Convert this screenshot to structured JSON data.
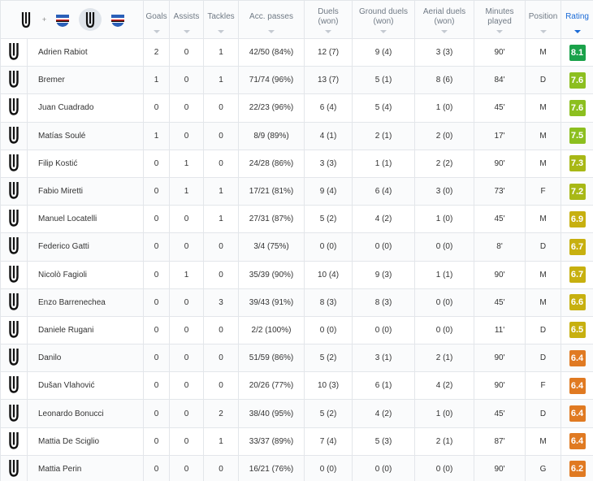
{
  "headers": {
    "goals": "Goals",
    "assists": "Assists",
    "tackles": "Tackles",
    "acc_passes": "Acc. passes",
    "duels": "Duels\n(won)",
    "ground_duels": "Ground duels\n(won)",
    "aerial_duels": "Aerial duels\n(won)",
    "minutes": "Minutes\nplayed",
    "position": "Position",
    "rating": "Rating"
  },
  "header_icons": [
    "juventus-logo-icon",
    "plus-icon",
    "sampdoria-logo-icon",
    "juventus-logo-icon",
    "sampdoria-logo-icon"
  ],
  "plus_text": "+",
  "colors": {
    "rating_dark_green": "#1aa24a",
    "rating_green": "#8cbf1f",
    "rating_lime": "#a8b816",
    "rating_yellow": "#c7b00f",
    "rating_orange": "#e07a22",
    "sort_active": "#1a6ad6"
  },
  "players": [
    {
      "name": "Adrien Rabiot",
      "goals": "2",
      "assists": "0",
      "tackles": "1",
      "acc_passes": "42/50 (84%)",
      "duels": "12 (7)",
      "ground_duels": "9 (4)",
      "aerial_duels": "3 (3)",
      "minutes": "90'",
      "position": "M",
      "rating": "8.1",
      "rating_color": "#1aa24a"
    },
    {
      "name": "Bremer",
      "goals": "1",
      "assists": "0",
      "tackles": "1",
      "acc_passes": "71/74 (96%)",
      "duels": "13 (7)",
      "ground_duels": "5 (1)",
      "aerial_duels": "8 (6)",
      "minutes": "84'",
      "position": "D",
      "rating": "7.6",
      "rating_color": "#8cbf1f"
    },
    {
      "name": "Juan Cuadrado",
      "goals": "0",
      "assists": "0",
      "tackles": "0",
      "acc_passes": "22/23 (96%)",
      "duels": "6 (4)",
      "ground_duels": "5 (4)",
      "aerial_duels": "1 (0)",
      "minutes": "45'",
      "position": "M",
      "rating": "7.6",
      "rating_color": "#8cbf1f"
    },
    {
      "name": "Matías Soulé",
      "goals": "1",
      "assists": "0",
      "tackles": "0",
      "acc_passes": "8/9 (89%)",
      "duels": "4 (1)",
      "ground_duels": "2 (1)",
      "aerial_duels": "2 (0)",
      "minutes": "17'",
      "position": "M",
      "rating": "7.5",
      "rating_color": "#8cbf1f"
    },
    {
      "name": "Filip Kostić",
      "goals": "0",
      "assists": "1",
      "tackles": "0",
      "acc_passes": "24/28 (86%)",
      "duels": "3 (3)",
      "ground_duels": "1 (1)",
      "aerial_duels": "2 (2)",
      "minutes": "90'",
      "position": "M",
      "rating": "7.3",
      "rating_color": "#a8b816"
    },
    {
      "name": "Fabio Miretti",
      "goals": "0",
      "assists": "1",
      "tackles": "1",
      "acc_passes": "17/21 (81%)",
      "duels": "9 (4)",
      "ground_duels": "6 (4)",
      "aerial_duels": "3 (0)",
      "minutes": "73'",
      "position": "F",
      "rating": "7.2",
      "rating_color": "#a8b816"
    },
    {
      "name": "Manuel Locatelli",
      "goals": "0",
      "assists": "0",
      "tackles": "1",
      "acc_passes": "27/31 (87%)",
      "duels": "5 (2)",
      "ground_duels": "4 (2)",
      "aerial_duels": "1 (0)",
      "minutes": "45'",
      "position": "M",
      "rating": "6.9",
      "rating_color": "#c7b00f"
    },
    {
      "name": "Federico Gatti",
      "goals": "0",
      "assists": "0",
      "tackles": "0",
      "acc_passes": "3/4 (75%)",
      "duels": "0 (0)",
      "ground_duels": "0 (0)",
      "aerial_duels": "0 (0)",
      "minutes": "8'",
      "position": "D",
      "rating": "6.7",
      "rating_color": "#c7b00f"
    },
    {
      "name": "Nicolò Fagioli",
      "goals": "0",
      "assists": "1",
      "tackles": "0",
      "acc_passes": "35/39 (90%)",
      "duels": "10 (4)",
      "ground_duels": "9 (3)",
      "aerial_duels": "1 (1)",
      "minutes": "90'",
      "position": "M",
      "rating": "6.7",
      "rating_color": "#c7b00f"
    },
    {
      "name": "Enzo Barrenechea",
      "goals": "0",
      "assists": "0",
      "tackles": "3",
      "acc_passes": "39/43 (91%)",
      "duels": "8 (3)",
      "ground_duels": "8 (3)",
      "aerial_duels": "0 (0)",
      "minutes": "45'",
      "position": "M",
      "rating": "6.6",
      "rating_color": "#c7b00f"
    },
    {
      "name": "Daniele Rugani",
      "goals": "0",
      "assists": "0",
      "tackles": "0",
      "acc_passes": "2/2 (100%)",
      "duels": "0 (0)",
      "ground_duels": "0 (0)",
      "aerial_duels": "0 (0)",
      "minutes": "11'",
      "position": "D",
      "rating": "6.5",
      "rating_color": "#c7b00f"
    },
    {
      "name": "Danilo",
      "goals": "0",
      "assists": "0",
      "tackles": "0",
      "acc_passes": "51/59 (86%)",
      "duels": "5 (2)",
      "ground_duels": "3 (1)",
      "aerial_duels": "2 (1)",
      "minutes": "90'",
      "position": "D",
      "rating": "6.4",
      "rating_color": "#e07a22"
    },
    {
      "name": "Dušan Vlahović",
      "goals": "0",
      "assists": "0",
      "tackles": "0",
      "acc_passes": "20/26 (77%)",
      "duels": "10 (3)",
      "ground_duels": "6 (1)",
      "aerial_duels": "4 (2)",
      "minutes": "90'",
      "position": "F",
      "rating": "6.4",
      "rating_color": "#e07a22"
    },
    {
      "name": "Leonardo Bonucci",
      "goals": "0",
      "assists": "0",
      "tackles": "2",
      "acc_passes": "38/40 (95%)",
      "duels": "5 (2)",
      "ground_duels": "4 (2)",
      "aerial_duels": "1 (0)",
      "minutes": "45'",
      "position": "D",
      "rating": "6.4",
      "rating_color": "#e07a22"
    },
    {
      "name": "Mattia De Sciglio",
      "goals": "0",
      "assists": "0",
      "tackles": "1",
      "acc_passes": "33/37 (89%)",
      "duels": "7 (4)",
      "ground_duels": "5 (3)",
      "aerial_duels": "2 (1)",
      "minutes": "87'",
      "position": "M",
      "rating": "6.4",
      "rating_color": "#e07a22"
    },
    {
      "name": "Mattia Perin",
      "goals": "0",
      "assists": "0",
      "tackles": "0",
      "acc_passes": "16/21 (76%)",
      "duels": "0 (0)",
      "ground_duels": "0 (0)",
      "aerial_duels": "0 (0)",
      "minutes": "90'",
      "position": "G",
      "rating": "6.2",
      "rating_color": "#e07a22"
    }
  ]
}
